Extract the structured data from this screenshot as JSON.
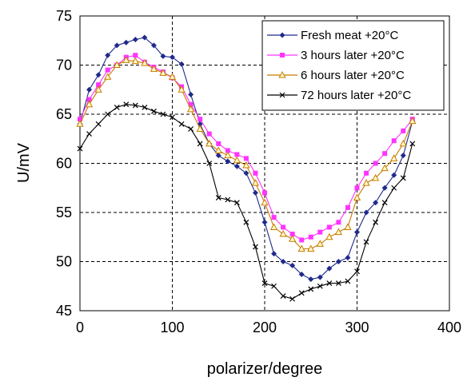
{
  "chart_data": {
    "type": "line",
    "title": "",
    "xlabel": "polarizer/degree",
    "ylabel": "U/mV",
    "xlim": [
      0,
      400
    ],
    "ylim": [
      45,
      75
    ],
    "xticks": [
      0,
      100,
      200,
      300,
      400
    ],
    "yticks": [
      45,
      50,
      55,
      60,
      65,
      70,
      75
    ],
    "grid": "dashed",
    "legend_position": "top-right",
    "series": [
      {
        "name": "Fresh meat +20°C",
        "color": "#1f2a8c",
        "marker": "diamond",
        "x": [
          0,
          10,
          20,
          30,
          40,
          50,
          60,
          70,
          80,
          90,
          100,
          110,
          120,
          130,
          140,
          150,
          160,
          170,
          180,
          190,
          200,
          210,
          220,
          230,
          240,
          250,
          260,
          270,
          280,
          290,
          300,
          310,
          320,
          330,
          340,
          350,
          360
        ],
        "y": [
          64.0,
          67.5,
          69.0,
          71.0,
          72.0,
          72.3,
          72.6,
          72.8,
          72.0,
          70.9,
          70.8,
          70.1,
          67.0,
          64.0,
          62.0,
          60.8,
          60.2,
          59.7,
          59.0,
          57.0,
          54.0,
          50.8,
          50.0,
          49.6,
          48.7,
          48.2,
          48.4,
          49.3,
          50.0,
          50.4,
          53.0,
          55.0,
          56.0,
          57.5,
          58.8,
          60.8,
          64.3
        ]
      },
      {
        "name": "3 hours later +20°C",
        "color": "#ff33ff",
        "marker": "square",
        "x": [
          0,
          10,
          20,
          30,
          40,
          50,
          60,
          70,
          80,
          90,
          100,
          110,
          120,
          130,
          140,
          150,
          160,
          170,
          180,
          190,
          200,
          210,
          220,
          230,
          240,
          250,
          260,
          270,
          280,
          290,
          300,
          310,
          320,
          330,
          340,
          350,
          360
        ],
        "y": [
          64.5,
          66.5,
          68.0,
          69.5,
          70.0,
          70.8,
          71.0,
          70.3,
          69.8,
          69.3,
          68.7,
          67.8,
          66.0,
          64.5,
          63.0,
          62.0,
          61.3,
          60.9,
          60.5,
          59.0,
          57.0,
          54.5,
          53.5,
          52.8,
          52.2,
          52.5,
          53.0,
          53.5,
          54.0,
          55.5,
          57.5,
          59.0,
          60.0,
          61.0,
          62.3,
          63.3,
          64.5
        ]
      },
      {
        "name": "6 hours later +20°C",
        "color": "#c87a00",
        "marker": "triangle",
        "x": [
          0,
          10,
          20,
          30,
          40,
          50,
          60,
          70,
          80,
          90,
          100,
          110,
          120,
          130,
          140,
          150,
          160,
          170,
          180,
          190,
          200,
          210,
          220,
          230,
          240,
          250,
          260,
          270,
          280,
          290,
          300,
          310,
          320,
          330,
          340,
          350,
          360
        ],
        "y": [
          64.0,
          66.0,
          67.5,
          68.8,
          70.0,
          70.5,
          70.4,
          70.2,
          69.6,
          69.2,
          68.8,
          67.5,
          65.5,
          63.5,
          62.0,
          61.3,
          60.8,
          60.3,
          59.8,
          58.0,
          56.0,
          53.5,
          52.8,
          52.3,
          51.3,
          51.3,
          51.8,
          52.5,
          53.0,
          53.5,
          56.5,
          58.0,
          58.5,
          59.5,
          60.5,
          62.0,
          64.3
        ]
      },
      {
        "name": "72 hours later +20°C",
        "color": "#000000",
        "marker": "cross",
        "x": [
          0,
          10,
          20,
          30,
          40,
          50,
          60,
          70,
          80,
          90,
          100,
          110,
          120,
          130,
          140,
          150,
          160,
          170,
          180,
          190,
          200,
          210,
          220,
          230,
          240,
          250,
          260,
          270,
          280,
          290,
          300,
          310,
          320,
          330,
          340,
          350,
          360
        ],
        "y": [
          61.5,
          63.0,
          64.0,
          65.0,
          65.7,
          66.0,
          65.9,
          65.7,
          65.3,
          65.0,
          64.7,
          64.0,
          63.5,
          62.0,
          60.0,
          56.5,
          56.3,
          56.0,
          54.0,
          51.5,
          47.8,
          47.5,
          46.5,
          46.2,
          46.8,
          47.2,
          47.5,
          47.8,
          47.8,
          48.0,
          49.0,
          52.0,
          54.0,
          56.0,
          57.5,
          58.5,
          62.0
        ]
      }
    ]
  }
}
